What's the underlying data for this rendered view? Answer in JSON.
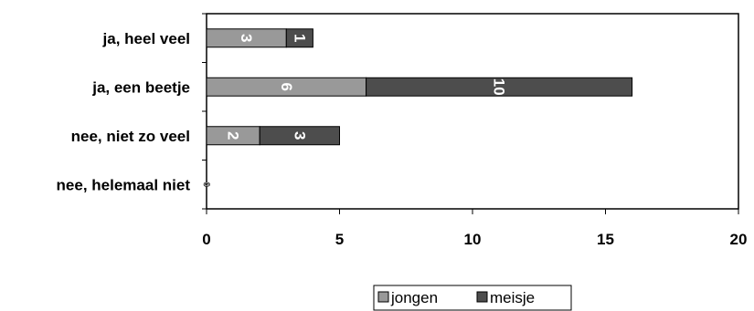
{
  "chart_data": {
    "type": "bar",
    "orientation": "horizontal",
    "stacked": true,
    "categories": [
      "ja, heel veel",
      "ja, een beetje",
      "nee, niet zo veel",
      "nee, helemaal niet"
    ],
    "series": [
      {
        "name": "jongen",
        "values": [
          3,
          6,
          2,
          0
        ],
        "color": "#999999"
      },
      {
        "name": "meisje",
        "values": [
          1,
          10,
          3,
          0
        ],
        "color": "#4d4d4d"
      }
    ],
    "xlim": [
      0,
      20
    ],
    "xticks": [
      0,
      5,
      10,
      15,
      20
    ],
    "title": "",
    "xlabel": "",
    "ylabel": "",
    "grid": false,
    "legend_position": "bottom",
    "data_labels": true
  }
}
